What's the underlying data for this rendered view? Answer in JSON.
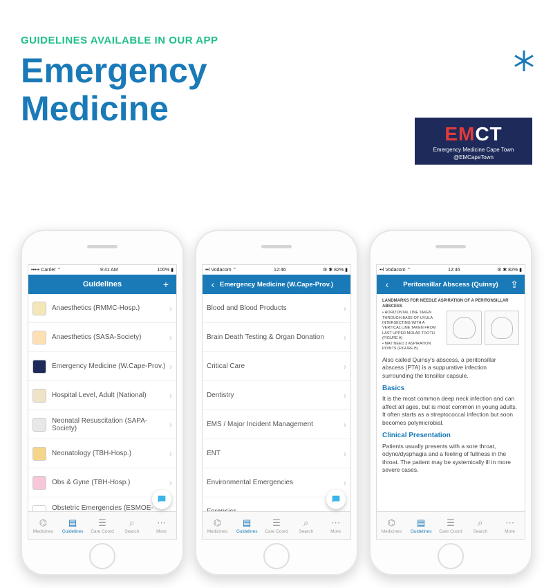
{
  "header": {
    "subtitle": "GUIDELINES AVAILABLE IN OUR APP",
    "title_line1": "Emergency",
    "title_line2": "Medicine"
  },
  "badge": {
    "em": "EM",
    "ct": "CT",
    "line1": "Emergency Medicine Cape Town",
    "line2": "@EMCapeTown"
  },
  "colors": {
    "accent": "#1a7ab8",
    "green": "#1fc088",
    "badge_bg": "#1e2a5a",
    "badge_red": "#e23b3b"
  },
  "phone1": {
    "status": {
      "left": "••••• Carrier ⌃",
      "center": "9:41 AM",
      "right": "100% ▮"
    },
    "nav": {
      "left": "",
      "title": "Guidelines",
      "right": "+"
    },
    "items": [
      {
        "label": "Anaesthetics (RMMC-Hosp.)",
        "icon_bg": "#f3e7b8"
      },
      {
        "label": "Anaesthetics (SASA-Society)",
        "icon_bg": "#ffe0b2"
      },
      {
        "label": "Emergency Medicine (W.Cape-Prov.)",
        "icon_bg": "#1e2a5a"
      },
      {
        "label": "Hospital Level, Adult (National)",
        "icon_bg": "#efe4c8"
      },
      {
        "label": "Neonatal Resuscitation (SAPA-Society)",
        "icon_bg": "#e8e8e8"
      },
      {
        "label": "Neonatology (TBH-Hosp.)",
        "icon_bg": "#f5d58a"
      },
      {
        "label": "Obs & Gyne (TBH-Hosp.)",
        "icon_bg": "#f7c6d9"
      },
      {
        "label": "Obstetric Emergencies (ESMOE-Society)",
        "icon_bg": "#ffffff"
      }
    ]
  },
  "phone2": {
    "status": {
      "left": "••l Vodacom ⌃",
      "center": "12:46",
      "right": "⚙ ✱ 82% ▮"
    },
    "nav": {
      "left": "‹",
      "title": "Emergency Medicine (W.Cape-Prov.)",
      "right": ""
    },
    "items": [
      {
        "label": "Blood and Blood Products"
      },
      {
        "label": "Brain Death Testing & Organ Donation"
      },
      {
        "label": "Critical Care"
      },
      {
        "label": "Dentistry"
      },
      {
        "label": "EMS / Major Incident Management"
      },
      {
        "label": "ENT"
      },
      {
        "label": "Environmental Emergencies"
      },
      {
        "label": "Forensics"
      }
    ]
  },
  "phone3": {
    "status": {
      "left": "••l Vodacom ⌃",
      "center": "12:46",
      "right": "⚙ ✱ 82% ▮"
    },
    "nav": {
      "left": "‹",
      "title": "Peritonsillar Abscess (Quinsy)",
      "right": "⇪"
    },
    "article": {
      "caption": "LANDMARKS FOR NEEDLE ASPIRATION OF A PERITONSILLAR ABSCESS",
      "bullets": "• HORIZONTAL LINE TAKEN THROUGH BASE OF UVULA INTERSECTING WITH A VERTICAL LINE TAKEN FROM LAST UPPER MOLAR TOOTH (FIGURE A)\n• MAY NEED 3 ASPIRATION POINTS (FIGURE B)",
      "intro": "Also called Quinsy's abscess, a peritonsillar abscess (PTA) is a suppurative infection surrounding the tonsillar capsule.",
      "h_basics": "Basics",
      "p_basics": "It is the most common deep neck infection and can affect all ages, but is most common in young adults. It often starts as a streptococcal infection but soon becomes polymicrobial.",
      "h_clinical": "Clinical Presentation",
      "p_clinical": "Patients usually presents with a sore throat, odyno/dysphagia and a feeling of fullness in the throat. The patient may be systemically ill in more severe cases."
    }
  },
  "tabs": [
    {
      "label": "Medicines",
      "icon": "⌬"
    },
    {
      "label": "Guidelines",
      "icon": "▤",
      "active": true
    },
    {
      "label": "Care Coord",
      "icon": "☰"
    },
    {
      "label": "Search",
      "icon": "⌕"
    },
    {
      "label": "More",
      "icon": "⋯"
    }
  ]
}
